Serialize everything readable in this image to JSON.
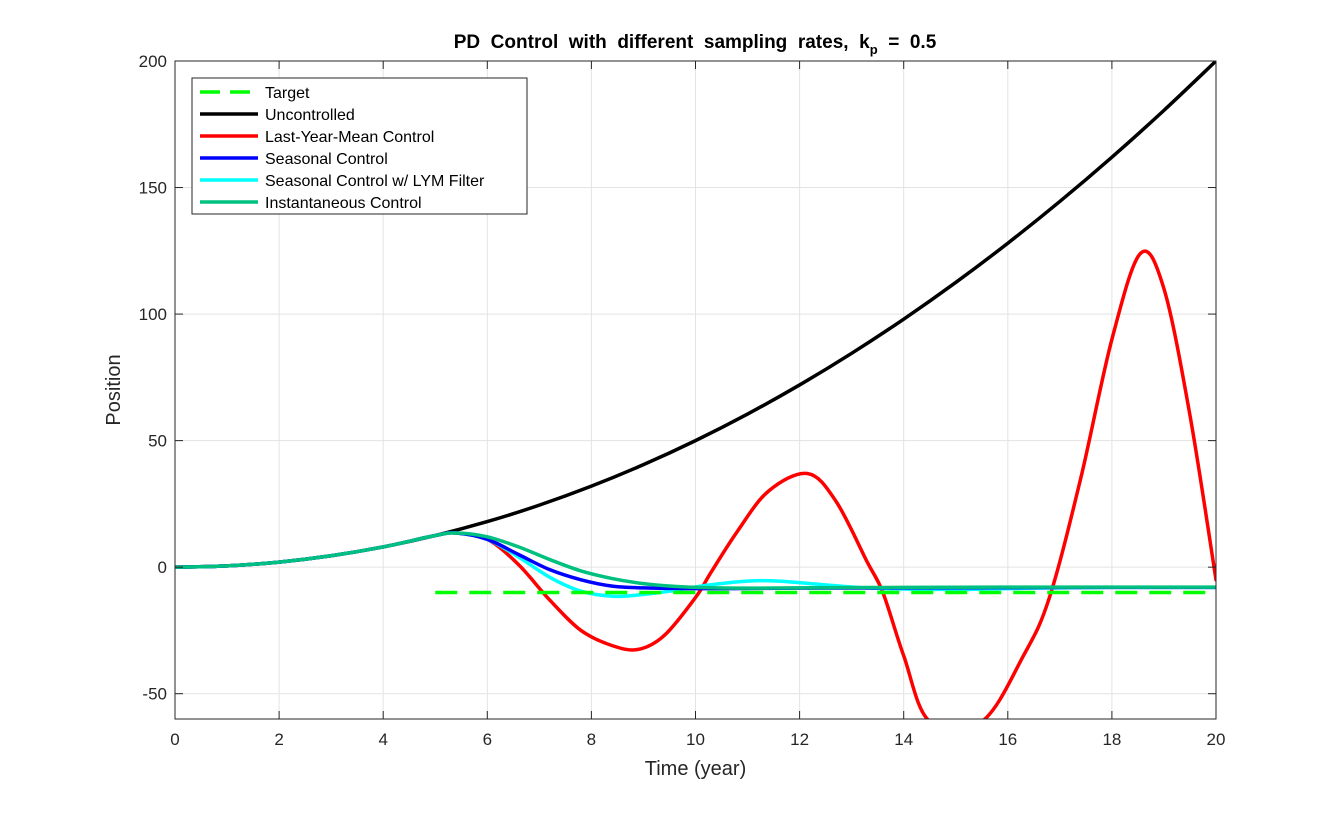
{
  "chart_data": {
    "type": "line",
    "title": {
      "main": "PD  Control  with  different  sampling  rates,  k",
      "subscript": "p",
      "suffix": "  =  0.5"
    },
    "xlabel": "Time (year)",
    "ylabel": "Position",
    "xlim": [
      0,
      20
    ],
    "ylim": [
      -60,
      200
    ],
    "x_ticks": [
      "0",
      "2",
      "4",
      "6",
      "8",
      "10",
      "12",
      "14",
      "16",
      "18",
      "20"
    ],
    "y_ticks": [
      "-50",
      "0",
      "50",
      "100",
      "150",
      "200"
    ],
    "grid": true,
    "legend_position": "top-left",
    "series": [
      {
        "name": "Target",
        "color": "#00ff00",
        "style": "dashed",
        "x": [
          5,
          20
        ],
        "y": [
          -10,
          -10
        ]
      },
      {
        "name": "Uncontrolled",
        "color": "#000000",
        "style": "solid",
        "x": [
          0,
          1,
          2,
          3,
          4,
          5,
          6,
          7,
          8,
          9,
          10,
          11,
          12,
          13,
          14,
          15,
          16,
          17,
          18,
          19,
          20
        ],
        "y": [
          0,
          0.5,
          2,
          4.5,
          8,
          12.5,
          18,
          24.5,
          32,
          40.5,
          50,
          60.5,
          72,
          84.5,
          98,
          112.5,
          128,
          144.5,
          162,
          180.5,
          200
        ]
      },
      {
        "name": "Last-Year-Mean Control",
        "color": "#ff0000",
        "style": "solid",
        "x": [
          0,
          1,
          2,
          3,
          4,
          5,
          5.4,
          6,
          6.6,
          7.2,
          7.8,
          8.4,
          8.9,
          9.4,
          10,
          10.3,
          10.8,
          11.4,
          12.15,
          12.7,
          13.3,
          13.6,
          14,
          14.5,
          15.5,
          16.3,
          16.8,
          17.4,
          18,
          18.55,
          19,
          19.5,
          20
        ],
        "y": [
          0,
          0.5,
          2,
          4.5,
          8,
          12.5,
          13.5,
          11,
          1,
          -13,
          -25,
          -31,
          -32.5,
          -27,
          -12,
          -2,
          14,
          30,
          37,
          26,
          2,
          -10,
          -35,
          -61,
          -61,
          -35,
          -12,
          35,
          90,
          124,
          110,
          60,
          -5
        ]
      },
      {
        "name": "Seasonal Control",
        "color": "#0000ff",
        "style": "solid",
        "x": [
          0,
          1,
          2,
          3,
          4,
          5,
          5.4,
          6,
          6.6,
          7.2,
          7.8,
          8.4,
          9,
          9.6,
          10.5,
          12,
          14,
          16,
          18,
          20
        ],
        "y": [
          0,
          0.5,
          2,
          4.5,
          8,
          12.5,
          13.5,
          11,
          5,
          -1,
          -5,
          -7.5,
          -8.2,
          -8.4,
          -8.5,
          -8.3,
          -8.2,
          -8.1,
          -8.0,
          -8.0
        ]
      },
      {
        "name": "Seasonal Control w/ LYM Filter",
        "color": "#00ffff",
        "style": "solid",
        "x": [
          0,
          1,
          2,
          3,
          4,
          5,
          5.4,
          6,
          6.6,
          7.2,
          7.8,
          8.4,
          8.9,
          9.5,
          10.2,
          11,
          11.6,
          12.5,
          13.5,
          15,
          16.5,
          18,
          20
        ],
        "y": [
          0,
          0.5,
          2,
          4.5,
          8,
          12.5,
          13.5,
          11,
          4,
          -4,
          -9.5,
          -11.5,
          -11,
          -9.5,
          -7.2,
          -5.5,
          -5.5,
          -7,
          -8.4,
          -8.8,
          -8.3,
          -8,
          -8
        ]
      },
      {
        "name": "Instantaneous Control",
        "color": "#00c080",
        "style": "solid",
        "x": [
          0,
          1,
          2,
          3,
          4,
          5,
          5.4,
          6,
          6.6,
          7.2,
          7.8,
          8.4,
          9,
          9.6,
          10.2,
          11,
          12,
          14,
          16,
          18,
          20
        ],
        "y": [
          0,
          0.5,
          2,
          4.5,
          8,
          12.5,
          13.5,
          12,
          8,
          3,
          -1.5,
          -4.5,
          -6.5,
          -7.6,
          -8.1,
          -8.3,
          -8.2,
          -8.0,
          -7.9,
          -7.9,
          -7.9
        ]
      }
    ]
  }
}
